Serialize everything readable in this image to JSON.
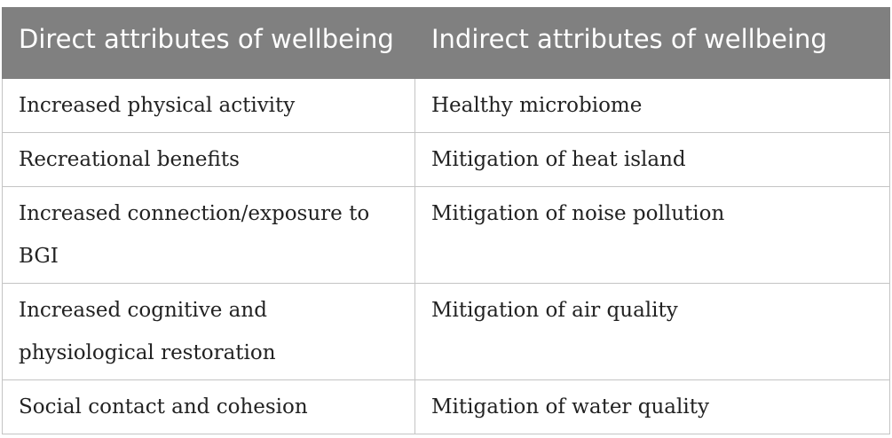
{
  "table": {
    "header": [
      "Direct attributes of wellbeing",
      "Indirect attributes of wellbeing"
    ],
    "rows": [
      [
        "Increased physical activity",
        "Healthy microbiome"
      ],
      [
        "Recreational benefits",
        "Mitigation of heat island"
      ],
      [
        "Increased connection/exposure to BGI",
        "Mitigation of noise pollution"
      ],
      [
        "Increased cognitive and physiological restoration",
        "Mitigation of air quality"
      ],
      [
        "Social contact and cohesion",
        "Mitigation of water quality"
      ]
    ]
  }
}
